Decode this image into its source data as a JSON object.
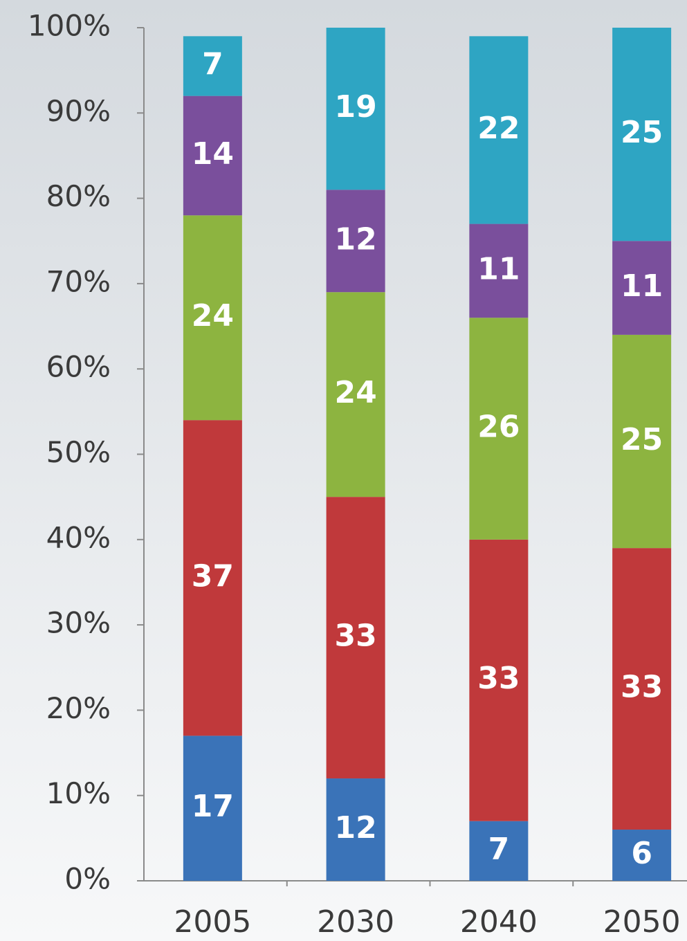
{
  "chart_data": {
    "type": "stacked-bar",
    "categories": [
      "2005",
      "2030",
      "2040",
      "2050"
    ],
    "series": [
      {
        "color": "#3a73b8",
        "values": [
          17,
          12,
          7,
          6
        ]
      },
      {
        "color": "#c0393b",
        "values": [
          37,
          33,
          33,
          33
        ]
      },
      {
        "color": "#8db440",
        "values": [
          24,
          24,
          26,
          25
        ]
      },
      {
        "color": "#7a4f9c",
        "values": [
          14,
          12,
          11,
          11
        ]
      },
      {
        "color": "#2ea5c3",
        "values": [
          7,
          19,
          22,
          25
        ]
      }
    ],
    "ylim": [
      0,
      100
    ],
    "yticks": [
      {
        "value": 0,
        "label": "0%"
      },
      {
        "value": 10,
        "label": "10%"
      },
      {
        "value": 20,
        "label": "20%"
      },
      {
        "value": 30,
        "label": "30%"
      },
      {
        "value": 40,
        "label": "40%"
      },
      {
        "value": 50,
        "label": "50%"
      },
      {
        "value": 60,
        "label": "60%"
      },
      {
        "value": 70,
        "label": "70%"
      },
      {
        "value": 80,
        "label": "80%"
      },
      {
        "value": 90,
        "label": "90%"
      },
      {
        "value": 100,
        "label": "100%"
      }
    ],
    "grid": false
  }
}
